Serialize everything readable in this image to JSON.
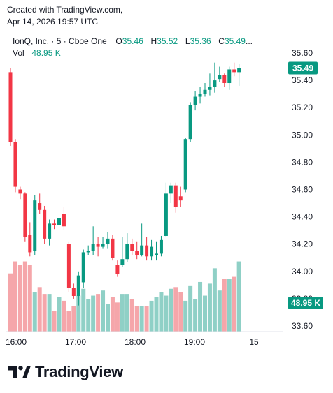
{
  "header": {
    "line1": "Created with TradingView.com,",
    "line2": "Apr 14, 2026 19:57 UTC"
  },
  "legend": {
    "symbol": "IonQ, Inc. · 5 · Cboe One",
    "o_key": "O",
    "o_val": "35.46",
    "h_key": "H",
    "h_val": "35.52",
    "l_key": "L",
    "l_val": "35.36",
    "c_key": "C",
    "c_val": "35.49",
    "more": "...",
    "vol_key": "Vol",
    "vol_val": "48.95 K"
  },
  "colors": {
    "up": "#089981",
    "down": "#f23645",
    "vol_up": "#8fd0c6",
    "vol_down": "#f5a6aa",
    "last_price_line": "#089981"
  },
  "logo_text": "TradingView",
  "chart_data": {
    "type": "candlestick",
    "y_ticks": [
      "35.60",
      "35.40",
      "35.20",
      "35.00",
      "34.80",
      "34.60",
      "34.40",
      "34.20",
      "34.00",
      "33.80",
      "33.60"
    ],
    "x_ticks": [
      "16:00",
      "17:00",
      "18:00",
      "19:00",
      "15"
    ],
    "last_price": 35.49,
    "last_price_label": "35.49",
    "last_volume_label": "48.95 K",
    "ylim": [
      33.55,
      35.62
    ],
    "candles": [
      [
        35.46,
        35.49,
        34.92,
        34.95,
        34
      ],
      [
        34.95,
        34.97,
        34.58,
        34.62,
        41
      ],
      [
        34.6,
        34.62,
        34.53,
        34.57,
        39
      ],
      [
        34.57,
        34.58,
        34.22,
        34.25,
        41
      ],
      [
        34.27,
        34.36,
        34.11,
        34.14,
        39
      ],
      [
        34.15,
        34.56,
        34.12,
        34.52,
        23
      ],
      [
        34.5,
        34.57,
        34.42,
        34.45,
        26
      ],
      [
        34.45,
        34.48,
        34.2,
        34.24,
        22
      ],
      [
        34.24,
        34.38,
        34.19,
        34.35,
        22
      ],
      [
        34.35,
        34.38,
        34.31,
        34.34,
        12
      ],
      [
        34.34,
        34.45,
        34.27,
        34.39,
        20
      ],
      [
        34.42,
        34.47,
        34.3,
        34.33,
        18
      ],
      [
        34.2,
        34.22,
        33.85,
        33.88,
        12
      ],
      [
        33.88,
        33.91,
        33.8,
        33.82,
        15
      ],
      [
        33.82,
        34.0,
        33.75,
        33.97,
        21
      ],
      [
        33.92,
        34.16,
        33.88,
        34.14,
        25
      ],
      [
        34.14,
        34.19,
        34.12,
        34.15,
        19
      ],
      [
        34.15,
        34.33,
        34.12,
        34.2,
        21
      ],
      [
        34.2,
        34.25,
        34.11,
        34.18,
        22
      ],
      [
        34.18,
        34.25,
        34.17,
        34.2,
        24
      ],
      [
        34.2,
        34.29,
        34.17,
        34.24,
        16
      ],
      [
        34.24,
        34.27,
        34.08,
        34.1,
        20
      ],
      [
        34.05,
        34.08,
        33.96,
        33.98,
        17
      ],
      [
        34.05,
        34.25,
        34.03,
        34.09,
        22
      ],
      [
        34.09,
        34.28,
        34.07,
        34.2,
        22
      ],
      [
        34.2,
        34.24,
        34.12,
        34.15,
        19
      ],
      [
        34.15,
        34.22,
        34.09,
        34.12,
        15
      ],
      [
        34.12,
        34.35,
        34.11,
        34.19,
        15
      ],
      [
        34.19,
        34.25,
        34.08,
        34.11,
        15
      ],
      [
        34.11,
        34.23,
        34.08,
        34.18,
        18
      ],
      [
        34.12,
        34.22,
        34.08,
        34.13,
        20
      ],
      [
        34.13,
        34.26,
        34.11,
        34.23,
        23
      ],
      [
        34.26,
        34.65,
        34.25,
        34.57,
        21
      ],
      [
        34.57,
        34.65,
        34.5,
        34.63,
        25
      ],
      [
        34.63,
        34.65,
        34.43,
        34.47,
        26
      ],
      [
        34.55,
        34.62,
        34.47,
        34.52,
        23
      ],
      [
        34.6,
        34.98,
        34.58,
        34.97,
        18
      ],
      [
        34.97,
        35.24,
        34.95,
        35.22,
        27
      ],
      [
        35.22,
        35.32,
        35.18,
        35.28,
        19
      ],
      [
        35.28,
        35.35,
        35.23,
        35.3,
        29
      ],
      [
        35.3,
        35.38,
        35.28,
        35.33,
        21
      ],
      [
        35.33,
        35.45,
        35.29,
        35.35,
        28
      ],
      [
        35.35,
        35.53,
        35.31,
        35.4,
        37
      ],
      [
        35.41,
        35.5,
        35.39,
        35.44,
        24
      ],
      [
        35.44,
        35.45,
        35.35,
        35.38,
        31
      ],
      [
        35.38,
        35.5,
        35.33,
        35.48,
        31
      ],
      [
        35.48,
        35.53,
        35.43,
        35.46,
        32
      ],
      [
        35.46,
        35.52,
        35.36,
        35.49,
        41
      ]
    ]
  }
}
